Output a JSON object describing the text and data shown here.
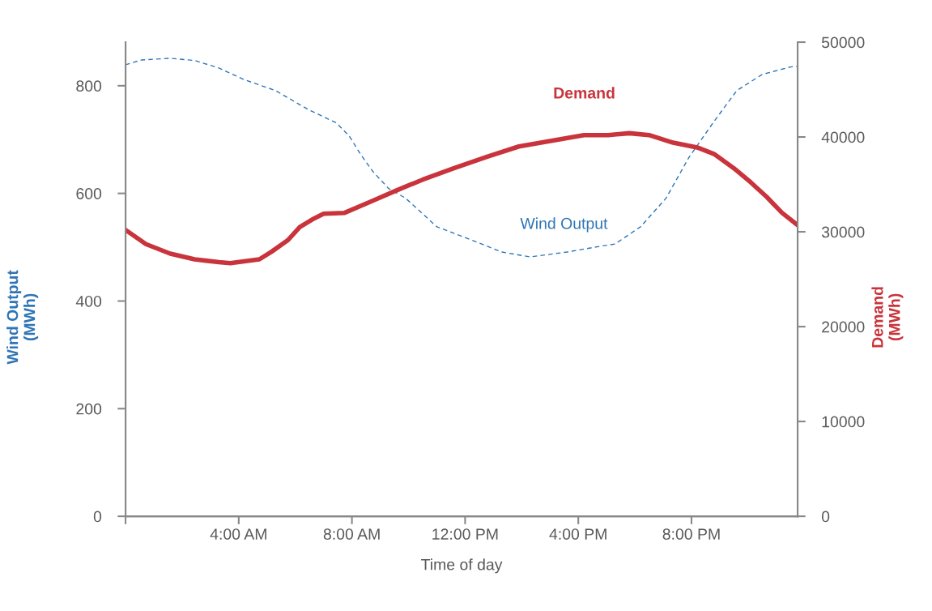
{
  "chart_data": {
    "type": "line",
    "xlabel": "Time of day",
    "ylabel": "Wind Output\n(MWh)",
    "y2label": "Demand\n(MWh)",
    "xlim": [
      0,
      23.75
    ],
    "xticks": [
      {
        "value": 0,
        "label": null
      },
      {
        "value": 4,
        "label": "4:00 AM"
      },
      {
        "value": 8,
        "label": "8:00 AM"
      },
      {
        "value": 12,
        "label": "12:00 PM"
      },
      {
        "value": 16,
        "label": "4:00 PM"
      },
      {
        "value": 20,
        "label": "8:00 PM"
      }
    ],
    "ylim": [
      0,
      881
    ],
    "yticks": [
      0,
      200,
      400,
      600,
      800
    ],
    "y2lim": [
      0,
      50000
    ],
    "y2ticks": [
      0,
      10000,
      20000,
      30000,
      40000,
      50000
    ],
    "grid": false,
    "legend": false,
    "series": [
      {
        "name": "Wind Output",
        "color": "#2e75b6",
        "line_style": "dashed",
        "axis": "y",
        "x": [
          0,
          0.57,
          1.58,
          2.44,
          3.3,
          4.16,
          5.3,
          6.45,
          7.45,
          7.9,
          8.3,
          8.75,
          9.3,
          9.9,
          11.0,
          12.2,
          13.3,
          14.3,
          15.6,
          16.8,
          17.3,
          18.2,
          19.1,
          19.9,
          20.8,
          21.6,
          22.5,
          23.5,
          23.75
        ],
        "values": [
          839,
          848,
          851,
          847,
          833,
          812,
          791,
          756,
          731,
          707,
          673,
          640,
          609,
          591,
          538,
          514,
          491,
          482,
          491,
          502,
          506,
          538,
          591,
          666,
          734,
          791,
          821,
          835,
          836
        ]
      },
      {
        "name": "Demand",
        "color": "#c9343c",
        "line_style": "solid",
        "axis": "y2",
        "x": [
          0,
          0.72,
          1.58,
          2.44,
          3.3,
          3.7,
          4.73,
          5.16,
          5.73,
          6.16,
          6.6,
          7.0,
          7.74,
          8.75,
          9.6,
          10.5,
          11.6,
          12.76,
          13.9,
          15.05,
          16.2,
          17.06,
          17.8,
          18.5,
          19.35,
          20.2,
          20.8,
          21.5,
          22.1,
          22.65,
          23.2,
          23.75
        ],
        "values": [
          30200,
          28700,
          27700,
          27100,
          26800,
          26700,
          27100,
          27900,
          29100,
          30500,
          31300,
          31900,
          32000,
          33300,
          34400,
          35500,
          36700,
          37900,
          39000,
          39600,
          40200,
          40200,
          40400,
          40200,
          39400,
          38900,
          38200,
          36700,
          35200,
          33700,
          32000,
          30700
        ]
      }
    ]
  }
}
